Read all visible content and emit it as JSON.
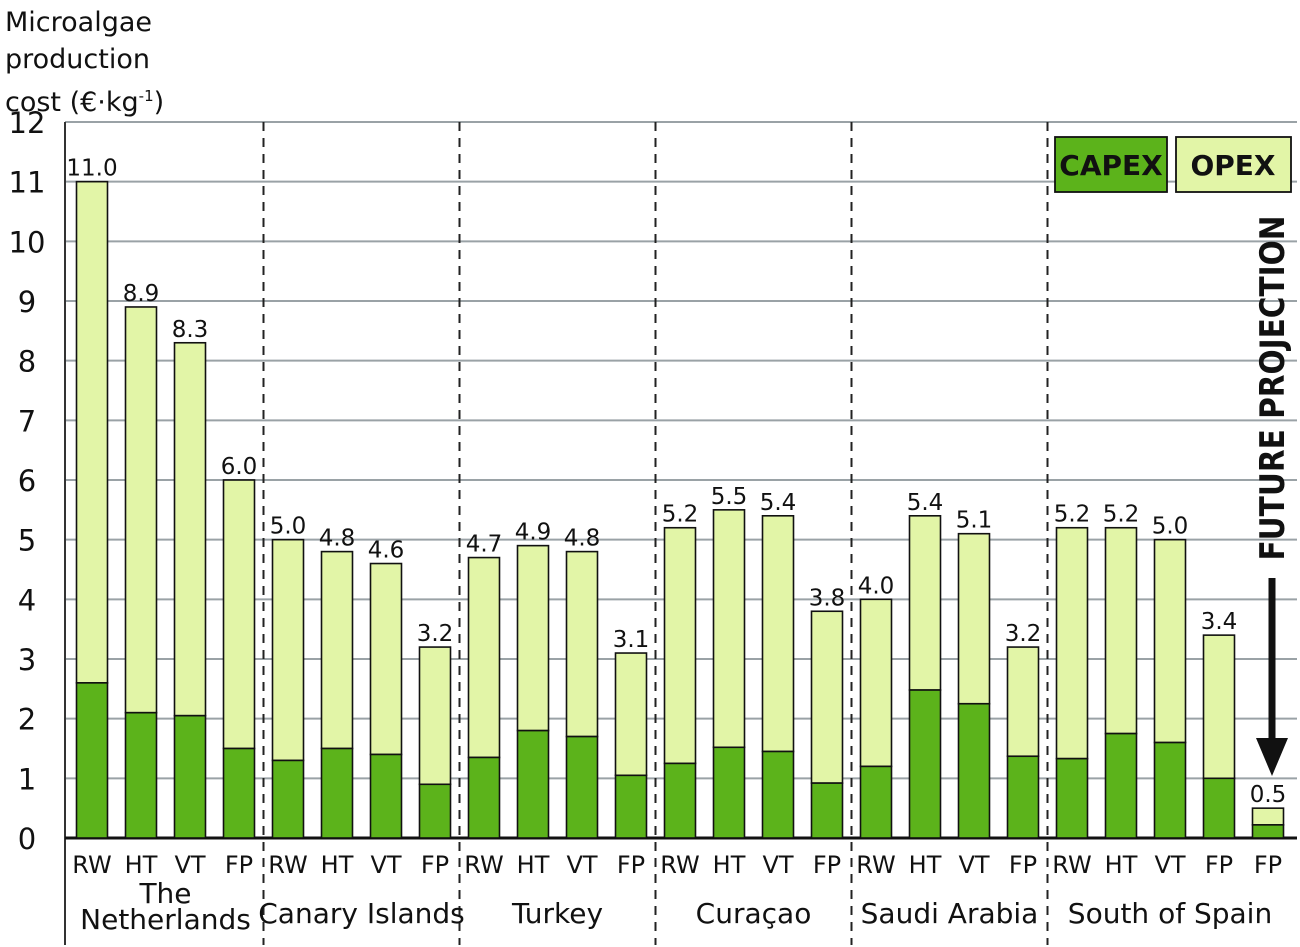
{
  "chart_data": {
    "type": "bar",
    "stacked": true,
    "ylabel_lines": [
      "Microalgae",
      "production",
      "cost (€·kg",
      "-1",
      ")"
    ],
    "ylim": [
      0,
      12
    ],
    "yticks": [
      "0",
      "1",
      "2",
      "3",
      "4",
      "5",
      "6",
      "7",
      "8",
      "9",
      "10",
      "11",
      "12"
    ],
    "grid": true,
    "legend": {
      "placement": "top-right",
      "capex_label": "CAPEX",
      "opex_label": "OPEX"
    },
    "annotation": "FUTURE PROJECTION",
    "colors": {
      "capex": "#5cb31b",
      "opex": "#e2f5a7",
      "grid": "#9aa2a6"
    },
    "series": [
      {
        "name": "CAPEX",
        "values": [
          2.6,
          2.1,
          2.05,
          1.5,
          1.3,
          1.5,
          1.4,
          0.9,
          1.35,
          1.8,
          1.7,
          1.05,
          1.25,
          1.52,
          1.45,
          0.92,
          1.2,
          2.48,
          2.25,
          1.37,
          1.33,
          1.75,
          1.6,
          1.0,
          0.22
        ]
      },
      {
        "name": "OPEX",
        "values": [
          8.4,
          6.8,
          6.25,
          4.5,
          3.7,
          3.3,
          3.2,
          2.3,
          3.35,
          3.1,
          3.1,
          2.05,
          3.95,
          3.98,
          3.95,
          2.88,
          2.8,
          2.92,
          2.85,
          1.83,
          3.87,
          3.45,
          3.4,
          2.4,
          0.28
        ]
      }
    ],
    "totals": [
      11.0,
      8.9,
      8.3,
      6.0,
      5.0,
      4.8,
      4.6,
      3.2,
      4.7,
      4.9,
      4.8,
      3.1,
      5.2,
      5.5,
      5.4,
      3.8,
      4.0,
      5.4,
      5.1,
      3.2,
      5.2,
      5.2,
      5.0,
      3.4,
      0.5
    ],
    "total_labels": [
      "11.0",
      "8.9",
      "8.3",
      "6.0",
      "5.0",
      "4.8",
      "4.6",
      "3.2",
      "4.7",
      "4.9",
      "4.8",
      "3.1",
      "5.2",
      "5.5",
      "5.4",
      "3.8",
      "4.0",
      "5.4",
      "5.1",
      "3.2",
      "5.2",
      "5.2",
      "5.0",
      "3.4",
      "0.5"
    ],
    "categories": [
      "RW",
      "HT",
      "VT",
      "FP",
      "RW",
      "HT",
      "VT",
      "FP",
      "RW",
      "HT",
      "VT",
      "FP",
      "RW",
      "HT",
      "VT",
      "FP",
      "RW",
      "HT",
      "VT",
      "FP",
      "RW",
      "HT",
      "VT",
      "FP",
      "FP"
    ],
    "groups": [
      {
        "label_lines": [
          "The",
          "Netherlands"
        ],
        "bars": 4
      },
      {
        "label_lines": [
          "Canary Islands"
        ],
        "bars": 4
      },
      {
        "label_lines": [
          "Turkey"
        ],
        "bars": 4
      },
      {
        "label_lines": [
          "Curaçao"
        ],
        "bars": 4
      },
      {
        "label_lines": [
          "Saudi Arabia"
        ],
        "bars": 4
      },
      {
        "label_lines": [
          "South of Spain"
        ],
        "bars": 5
      }
    ]
  }
}
